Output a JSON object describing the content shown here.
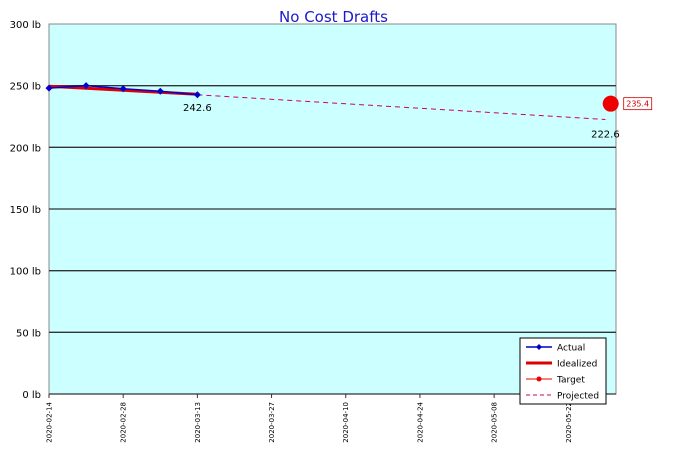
{
  "chart_data": {
    "type": "line",
    "title": "No Cost Drafts",
    "xlabel": "",
    "ylabel": "",
    "ylim": [
      0,
      300
    ],
    "yticks": [
      "0 lb",
      "50 lb",
      "100 lb",
      "150 lb",
      "200 lb",
      "250 lb",
      "300 lb"
    ],
    "xlim": [
      "2020-02-14",
      "2020-05-31"
    ],
    "xticks": [
      "2020-02-14",
      "2020-02-28",
      "2020-03-13",
      "2020-03-27",
      "2020-04-10",
      "2020-04-24",
      "2020-05-08",
      "2020-05-22"
    ],
    "grid": "horizontal",
    "legend_position": "bottom-right",
    "series": [
      {
        "name": "Actual",
        "color": "#0000cc",
        "x": [
          "2020-02-14",
          "2020-02-21",
          "2020-02-28",
          "2020-03-06",
          "2020-03-13"
        ],
        "y": [
          248.0,
          250.0,
          247.5,
          245.5,
          242.6
        ]
      },
      {
        "name": "Idealized",
        "color": "#dd0000",
        "x": [
          "2020-02-14",
          "2020-03-13"
        ],
        "y": [
          249.5,
          243.0
        ]
      },
      {
        "name": "Target",
        "color": "#ee0000",
        "x": [
          "2020-05-30"
        ],
        "y": [
          235.4
        ]
      },
      {
        "name": "Projected",
        "color": "#cc0066",
        "x": [
          "2020-03-13",
          "2020-05-29"
        ],
        "y": [
          242.6,
          222.6
        ]
      }
    ],
    "annotations": {
      "last_actual": "242.6",
      "projected_end": "222.6",
      "target_value": "235.4"
    },
    "colors": {
      "plot_background": "#ccffff",
      "grid": "#333333",
      "title": "#1a1acc"
    }
  }
}
